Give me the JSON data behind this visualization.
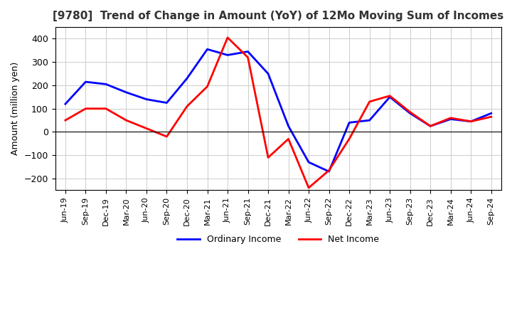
{
  "title": "[9780]  Trend of Change in Amount (YoY) of 12Mo Moving Sum of Incomes",
  "ylabel": "Amount (million yen)",
  "ylim": [
    -250,
    450
  ],
  "yticks": [
    -200,
    -100,
    0,
    100,
    200,
    300,
    400
  ],
  "x_labels": [
    "Jun-19",
    "Sep-19",
    "Dec-19",
    "Mar-20",
    "Jun-20",
    "Sep-20",
    "Dec-20",
    "Mar-21",
    "Jun-21",
    "Sep-21",
    "Dec-21",
    "Mar-22",
    "Jun-22",
    "Sep-22",
    "Dec-22",
    "Mar-23",
    "Jun-23",
    "Sep-23",
    "Dec-23",
    "Mar-24",
    "Jun-24",
    "Sep-24"
  ],
  "ordinary_income": [
    120,
    215,
    205,
    170,
    140,
    125,
    230,
    355,
    330,
    345,
    250,
    25,
    -130,
    -170,
    40,
    50,
    150,
    80,
    25,
    55,
    45,
    80
  ],
  "net_income": [
    50,
    100,
    100,
    50,
    15,
    -20,
    110,
    195,
    405,
    320,
    -110,
    -30,
    -240,
    -165,
    -30,
    130,
    155,
    85,
    25,
    60,
    45,
    65
  ],
  "ordinary_color": "#0000ff",
  "net_color": "#ff0000",
  "grid_color": "#cccccc",
  "background_color": "#ffffff",
  "legend_ordinary": "Ordinary Income",
  "legend_net": "Net Income"
}
